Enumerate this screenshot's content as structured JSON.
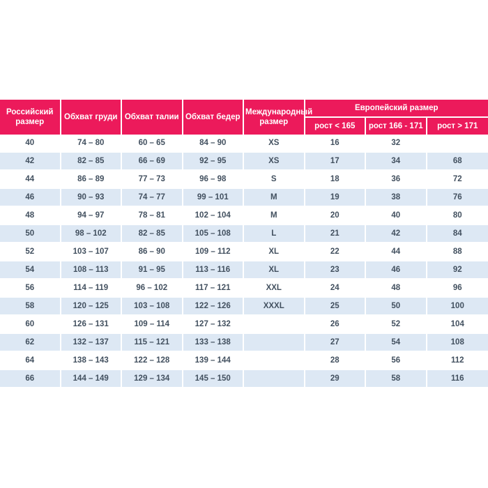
{
  "colors": {
    "header_bg": "#ec1a5b",
    "header_text": "#ffffff",
    "stripe_bg": "#dde8f4",
    "cell_text": "#42505f"
  },
  "table": {
    "headers": {
      "russian_size": "Российский размер",
      "chest": "Обхват груди",
      "waist": "Обхват талии",
      "hips": "Обхват бедер",
      "international": "Международный размер",
      "european": "Европейский размер",
      "height_sub": [
        "рост < 165",
        "рост 166 - 171",
        "рост > 171"
      ]
    },
    "rows": [
      [
        "40",
        "74 – 80",
        "60 – 65",
        "84 – 90",
        "XS",
        "16",
        "32",
        ""
      ],
      [
        "42",
        "82 – 85",
        "66 – 69",
        "92 – 95",
        "XS",
        "17",
        "34",
        "68"
      ],
      [
        "44",
        "86 – 89",
        "77 – 73",
        "96 – 98",
        "S",
        "18",
        "36",
        "72"
      ],
      [
        "46",
        "90 – 93",
        "74 – 77",
        "99 – 101",
        "M",
        "19",
        "38",
        "76"
      ],
      [
        "48",
        "94 – 97",
        "78 – 81",
        "102 – 104",
        "M",
        "20",
        "40",
        "80"
      ],
      [
        "50",
        "98 – 102",
        "82 – 85",
        "105 – 108",
        "L",
        "21",
        "42",
        "84"
      ],
      [
        "52",
        "103 – 107",
        "86 – 90",
        "109 – 112",
        "XL",
        "22",
        "44",
        "88"
      ],
      [
        "54",
        "108 – 113",
        "91 – 95",
        "113 – 116",
        "XL",
        "23",
        "46",
        "92"
      ],
      [
        "56",
        "114 – 119",
        "96 – 102",
        "117 – 121",
        "XXL",
        "24",
        "48",
        "96"
      ],
      [
        "58",
        "120 – 125",
        "103 – 108",
        "122 – 126",
        "XXXL",
        "25",
        "50",
        "100"
      ],
      [
        "60",
        "126 – 131",
        "109 – 114",
        "127 – 132",
        "",
        "26",
        "52",
        "104"
      ],
      [
        "62",
        "132 – 137",
        "115 – 121",
        "133 – 138",
        "",
        "27",
        "54",
        "108"
      ],
      [
        "64",
        "138 – 143",
        "122 – 128",
        "139 – 144",
        "",
        "28",
        "56",
        "112"
      ],
      [
        "66",
        "144 – 149",
        "129 – 134",
        "145 – 150",
        "",
        "29",
        "58",
        "116"
      ]
    ]
  }
}
